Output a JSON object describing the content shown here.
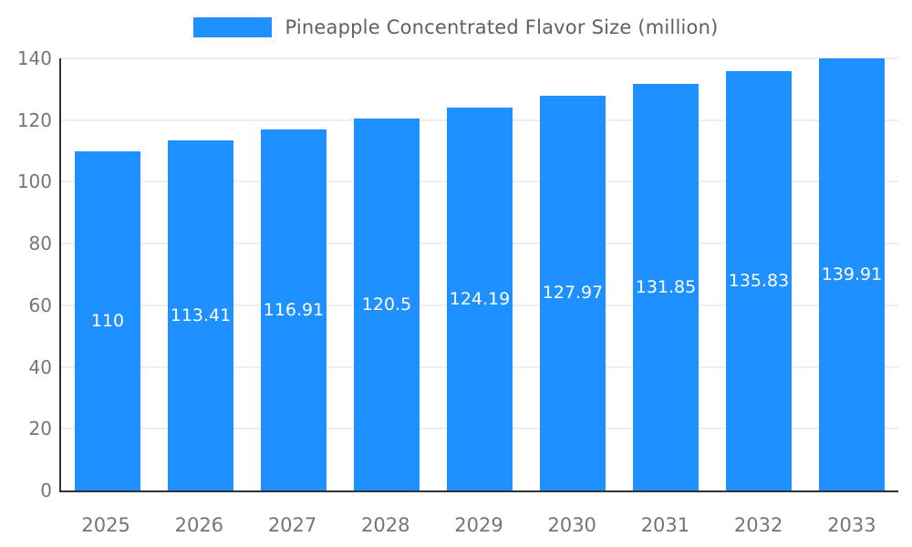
{
  "chart_data": {
    "type": "bar",
    "title": "Pineapple Concentrated Flavor Size (million)",
    "categories": [
      "2025",
      "2026",
      "2027",
      "2028",
      "2029",
      "2030",
      "2031",
      "2032",
      "2033"
    ],
    "values": [
      110,
      113.41,
      116.91,
      120.5,
      124.19,
      127.97,
      131.85,
      135.83,
      139.91
    ],
    "value_labels": [
      "110",
      "113.41",
      "116.91",
      "120.5",
      "124.19",
      "127.97",
      "131.85",
      "135.83",
      "139.91"
    ],
    "ylim": [
      0,
      140
    ],
    "yticks": [
      0,
      20,
      40,
      60,
      80,
      100,
      120,
      140
    ],
    "grid": true,
    "legend_position": "top",
    "xlabel": "",
    "ylabel": "",
    "bar_color": "#1e90ff",
    "value_label_color": "#ffffff",
    "axis_text_color": "#757575",
    "title_color": "#616161",
    "grid_color": "#dddddd",
    "axis_line_color": "#333333"
  }
}
